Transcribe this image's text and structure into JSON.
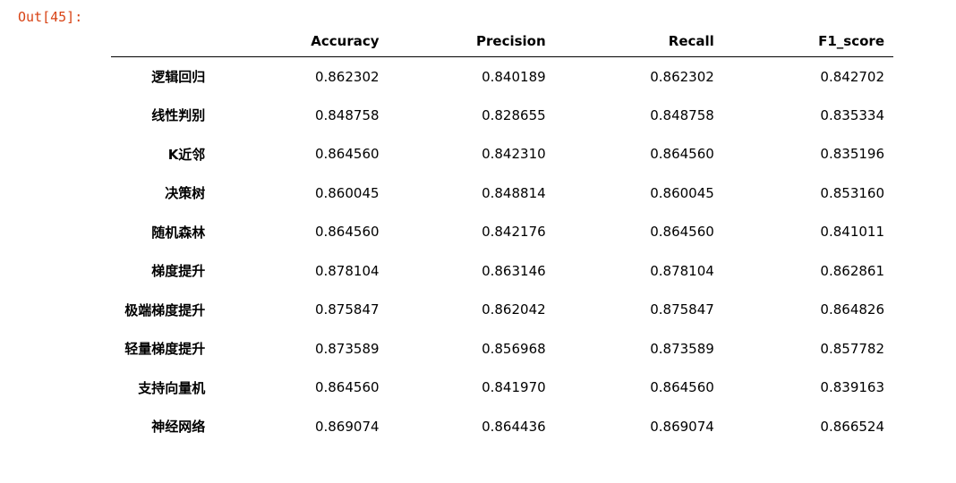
{
  "output_prompt": "Out[45]:",
  "table": {
    "columns": [
      "",
      "Accuracy",
      "Precision",
      "Recall",
      "F1_score"
    ],
    "rows": [
      {
        "label": "逻辑回归",
        "values": [
          "0.862302",
          "0.840189",
          "0.862302",
          "0.842702"
        ]
      },
      {
        "label": "线性判别",
        "values": [
          "0.848758",
          "0.828655",
          "0.848758",
          "0.835334"
        ]
      },
      {
        "label": "K近邻",
        "values": [
          "0.864560",
          "0.842310",
          "0.864560",
          "0.835196"
        ]
      },
      {
        "label": "决策树",
        "values": [
          "0.860045",
          "0.848814",
          "0.860045",
          "0.853160"
        ]
      },
      {
        "label": "随机森林",
        "values": [
          "0.864560",
          "0.842176",
          "0.864560",
          "0.841011"
        ]
      },
      {
        "label": "梯度提升",
        "values": [
          "0.878104",
          "0.863146",
          "0.878104",
          "0.862861"
        ]
      },
      {
        "label": "极端梯度提升",
        "values": [
          "0.875847",
          "0.862042",
          "0.875847",
          "0.864826"
        ]
      },
      {
        "label": "轻量梯度提升",
        "values": [
          "0.873589",
          "0.856968",
          "0.873589",
          "0.857782"
        ]
      },
      {
        "label": "支持向量机",
        "values": [
          "0.864560",
          "0.841970",
          "0.864560",
          "0.839163"
        ]
      },
      {
        "label": "神经网络",
        "values": [
          "0.869074",
          "0.864436",
          "0.869074",
          "0.866524"
        ]
      }
    ]
  },
  "colors": {
    "prompt": "#d84315",
    "text": "#000000"
  }
}
